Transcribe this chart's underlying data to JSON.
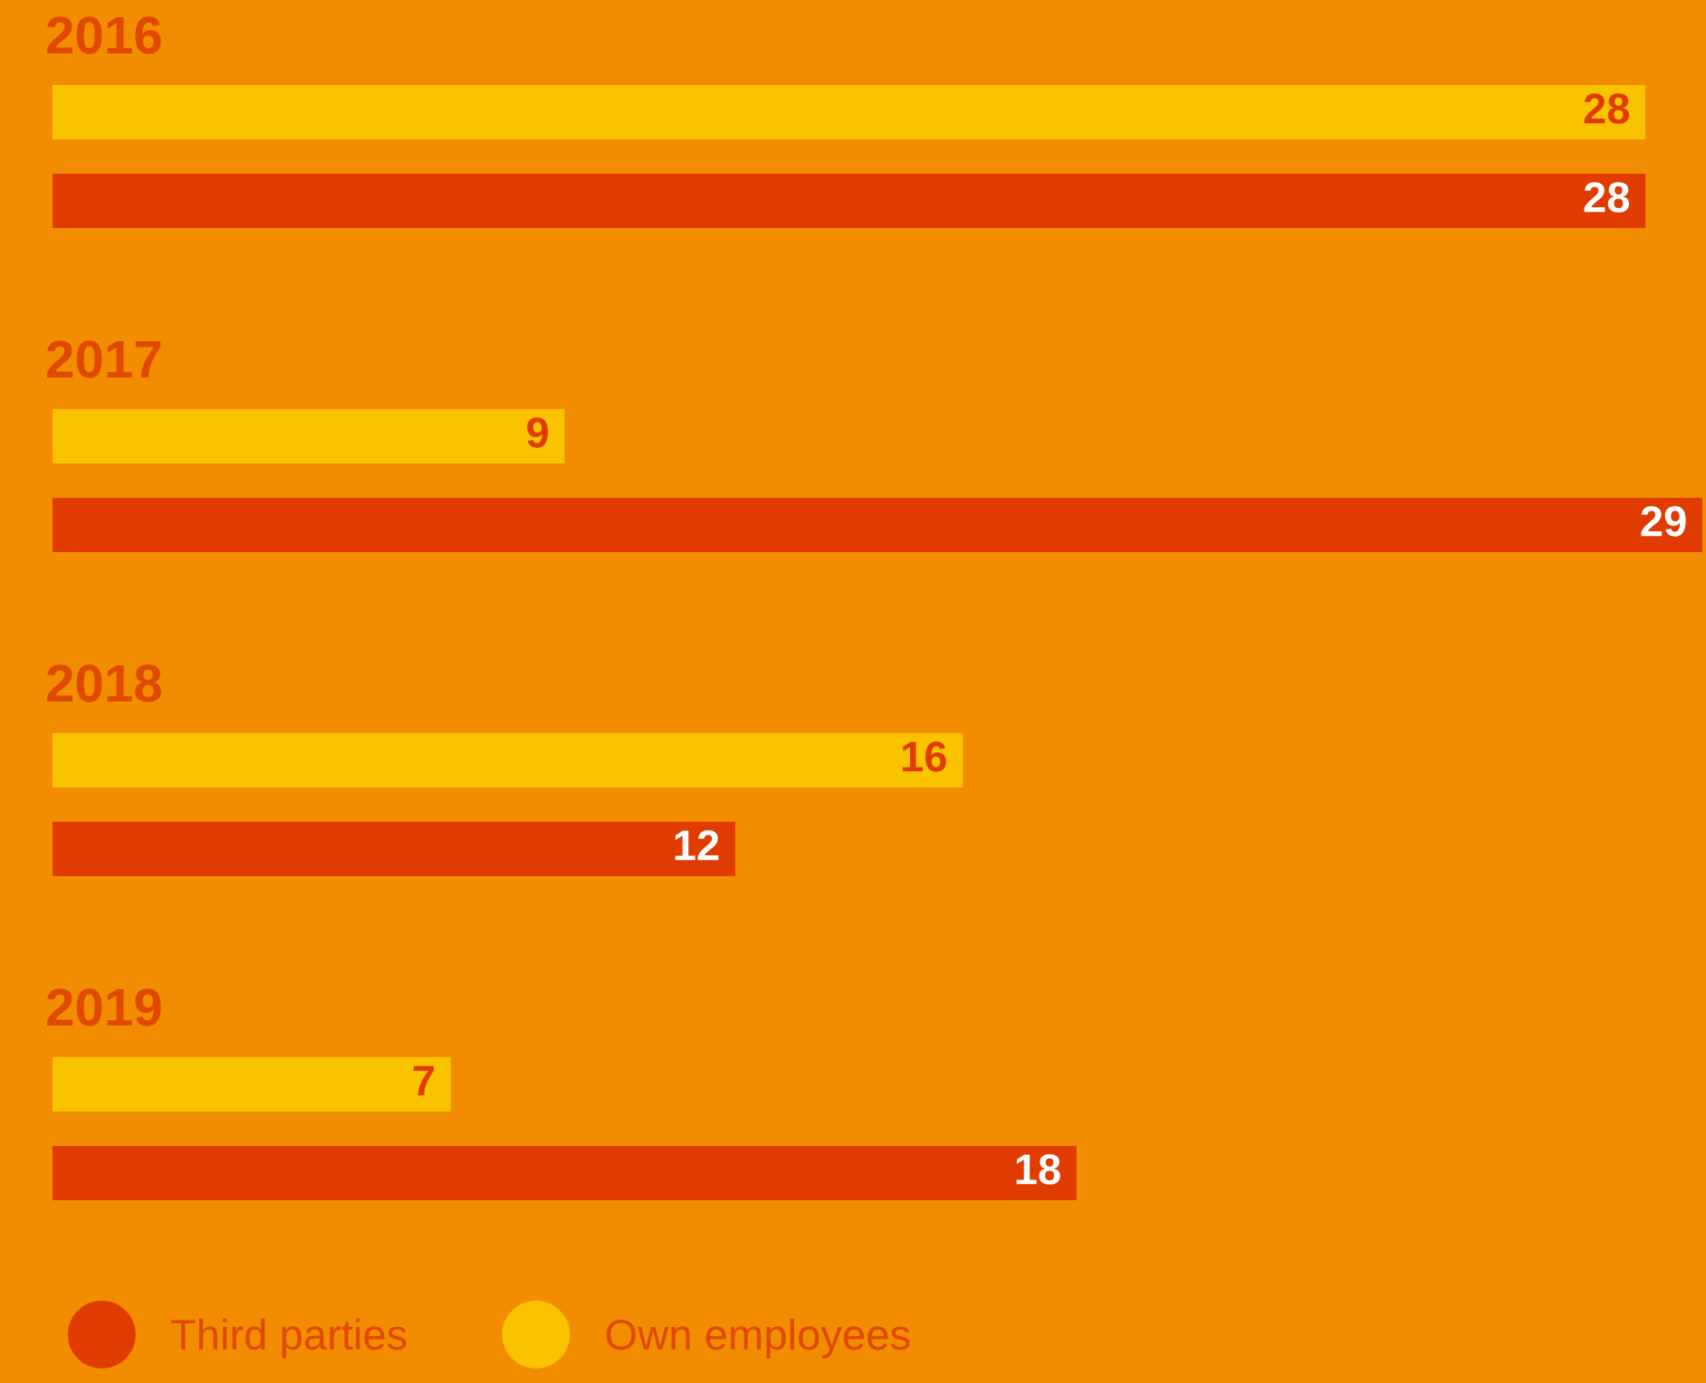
{
  "chart_data": {
    "type": "bar",
    "orientation": "horizontal",
    "categories": [
      "2016",
      "2017",
      "2018",
      "2019"
    ],
    "series": [
      {
        "name": "Third parties",
        "color": "#e03c00",
        "values": [
          28,
          29,
          12,
          18
        ]
      },
      {
        "name": "Own employees",
        "color": "#f9c300",
        "values": [
          28,
          9,
          16,
          7
        ]
      }
    ],
    "data_labels": true,
    "legend": "bottom left"
  }
}
